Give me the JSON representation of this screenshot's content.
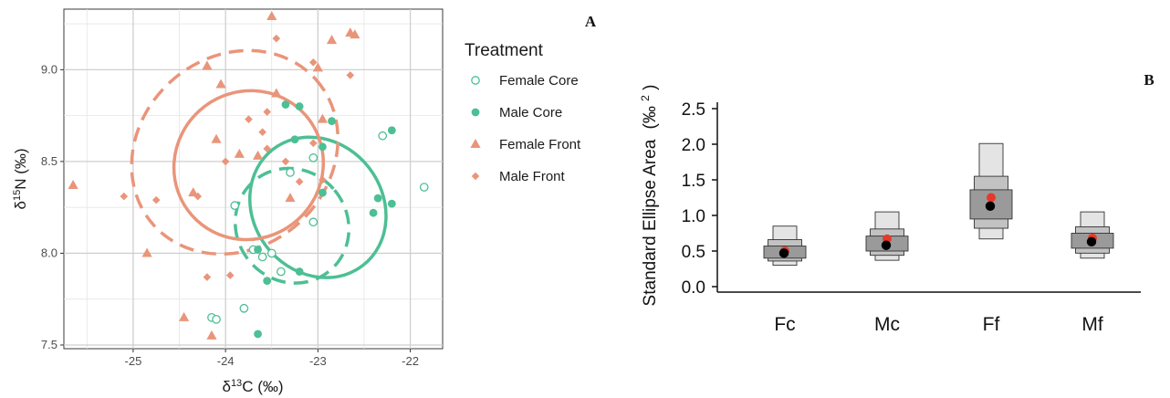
{
  "chart_data": [
    {
      "type": "scatter",
      "panel_label": "A",
      "xlabel": "δ13C (‰)",
      "ylabel": "δ15N (‰)",
      "xlim": [
        -25.75,
        -21.65
      ],
      "ylim": [
        7.48,
        9.33
      ],
      "xticks": [
        {
          "value": -25,
          "label": "-25"
        },
        {
          "value": -24,
          "label": "-24"
        },
        {
          "value": -23,
          "label": "-23"
        },
        {
          "value": -22,
          "label": "-22"
        }
      ],
      "yticks": [
        {
          "value": 7.5,
          "label": "7.5"
        },
        {
          "value": 8.0,
          "label": "8.0"
        },
        {
          "value": 8.5,
          "label": "8.5"
        },
        {
          "value": 9.0,
          "label": "9.0"
        }
      ],
      "grid": true,
      "legend": {
        "title": "Treatment",
        "position": "right",
        "entries": [
          {
            "name": "Female Core",
            "marker": "circle-open",
            "color": "#4dbf94"
          },
          {
            "name": "Male Core",
            "marker": "circle",
            "color": "#4dbf94"
          },
          {
            "name": "Female Front",
            "marker": "triangle",
            "color": "#e9957a"
          },
          {
            "name": "Male Front",
            "marker": "diamond",
            "color": "#e9957a"
          }
        ]
      },
      "series": [
        {
          "name": "Female Core",
          "marker": "circle-open",
          "color": "#4dbf94",
          "points": [
            [
              -23.9,
              8.26
            ],
            [
              -23.7,
              8.02
            ],
            [
              -23.6,
              7.98
            ],
            [
              -23.5,
              8.0
            ],
            [
              -23.3,
              8.44
            ],
            [
              -23.05,
              8.52
            ],
            [
              -23.05,
              8.17
            ],
            [
              -22.3,
              8.64
            ],
            [
              -21.85,
              8.36
            ],
            [
              -24.15,
              7.65
            ],
            [
              -24.1,
              7.64
            ],
            [
              -23.8,
              7.7
            ],
            [
              -23.4,
              7.9
            ]
          ]
        },
        {
          "name": "Male Core",
          "marker": "circle",
          "color": "#4dbf94",
          "points": [
            [
              -23.35,
              8.81
            ],
            [
              -23.2,
              8.8
            ],
            [
              -22.85,
              8.72
            ],
            [
              -22.2,
              8.67
            ],
            [
              -23.25,
              8.62
            ],
            [
              -22.95,
              8.58
            ],
            [
              -22.95,
              8.33
            ],
            [
              -22.35,
              8.3
            ],
            [
              -22.2,
              8.27
            ],
            [
              -22.4,
              8.22
            ],
            [
              -23.65,
              8.02
            ],
            [
              -23.2,
              7.9
            ],
            [
              -23.55,
              7.85
            ],
            [
              -23.65,
              7.56
            ]
          ]
        },
        {
          "name": "Female Front",
          "marker": "triangle",
          "color": "#e9957a",
          "points": [
            [
              -23.5,
              9.29
            ],
            [
              -22.6,
              9.19
            ],
            [
              -22.85,
              9.16
            ],
            [
              -22.65,
              9.2
            ],
            [
              -23.0,
              9.01
            ],
            [
              -24.2,
              9.02
            ],
            [
              -24.05,
              8.92
            ],
            [
              -23.45,
              8.87
            ],
            [
              -22.95,
              8.73
            ],
            [
              -24.1,
              8.62
            ],
            [
              -23.85,
              8.54
            ],
            [
              -23.65,
              8.53
            ],
            [
              -23.3,
              8.3
            ],
            [
              -25.65,
              8.37
            ],
            [
              -24.35,
              8.33
            ],
            [
              -24.85,
              8.0
            ],
            [
              -24.45,
              7.65
            ],
            [
              -24.15,
              7.55
            ]
          ]
        },
        {
          "name": "Male Front",
          "marker": "diamond",
          "color": "#e9957a",
          "points": [
            [
              -23.45,
              9.17
            ],
            [
              -23.05,
              9.04
            ],
            [
              -22.65,
              8.97
            ],
            [
              -23.55,
              8.77
            ],
            [
              -23.05,
              8.6
            ],
            [
              -23.6,
              8.66
            ],
            [
              -23.75,
              8.73
            ],
            [
              -23.55,
              8.57
            ],
            [
              -24.0,
              8.5
            ],
            [
              -23.35,
              8.5
            ],
            [
              -22.95,
              8.4
            ],
            [
              -25.1,
              8.31
            ],
            [
              -24.75,
              8.29
            ],
            [
              -24.3,
              8.31
            ],
            [
              -23.2,
              8.39
            ],
            [
              -24.2,
              7.87
            ],
            [
              -23.95,
              7.88
            ]
          ]
        }
      ],
      "ellipses": [
        {
          "series": "Female Core",
          "style": "dashed",
          "color": "#4dbf94",
          "center": [
            -23.28,
            8.15
          ],
          "rx_data": 0.6,
          "ry_data": 0.32,
          "angle_deg": -40
        },
        {
          "series": "Male Core",
          "style": "solid",
          "color": "#4dbf94",
          "center": [
            -23.0,
            8.25
          ],
          "rx_data": 0.7,
          "ry_data": 0.4,
          "angle_deg": -38
        },
        {
          "series": "Female Front",
          "style": "dashed",
          "color": "#e9957a",
          "center": [
            -23.9,
            8.55
          ],
          "rx_data": 1.18,
          "ry_data": 0.52,
          "angle_deg": -42
        },
        {
          "series": "Male Front",
          "style": "solid",
          "color": "#e9957a",
          "center": [
            -23.75,
            8.48
          ],
          "rx_data": 0.82,
          "ry_data": 0.4,
          "angle_deg": -42
        }
      ]
    },
    {
      "type": "box",
      "panel_label": "B",
      "xlabel": "",
      "ylabel": "Standard Ellipse Area",
      "ylabel_unit": "(‰",
      "ylabel_unit_exp": "2",
      "ylabel_unit_close": ")",
      "ylim": [
        0,
        2.5
      ],
      "yticks": [
        {
          "value": 0.0,
          "label": "0.0"
        },
        {
          "value": 0.5,
          "label": "0.5"
        },
        {
          "value": 1.0,
          "label": "1.0"
        },
        {
          "value": 1.5,
          "label": "1.5"
        },
        {
          "value": 2.0,
          "label": "2.0"
        },
        {
          "value": 2.5,
          "label": "2.5"
        }
      ],
      "categories": [
        "Fc",
        "Mc",
        "Ff",
        "Mf"
      ],
      "intervals": [
        {
          "category": "Fc",
          "ci95": [
            0.3,
            0.85
          ],
          "ci75": [
            0.36,
            0.66
          ],
          "ci50": [
            0.4,
            0.57
          ],
          "mode": 0.47,
          "ml_estimate": 0.5
        },
        {
          "category": "Mc",
          "ci95": [
            0.37,
            1.05
          ],
          "ci75": [
            0.44,
            0.81
          ],
          "ci50": [
            0.5,
            0.71
          ],
          "mode": 0.58,
          "ml_estimate": 0.67
        },
        {
          "category": "Ff",
          "ci95": [
            0.67,
            2.01
          ],
          "ci75": [
            0.82,
            1.55
          ],
          "ci50": [
            0.95,
            1.36
          ],
          "mode": 1.13,
          "ml_estimate": 1.25
        },
        {
          "category": "Mf",
          "ci95": [
            0.4,
            1.05
          ],
          "ci75": [
            0.47,
            0.84
          ],
          "ci50": [
            0.54,
            0.75
          ],
          "mode": 0.63,
          "ml_estimate": 0.68
        }
      ],
      "colors": {
        "ci95": "#e4e4e4",
        "ci75": "#c2c2c2",
        "ci50": "#9a9a9a",
        "mode": "#000000",
        "ml_estimate": "#e53a2a"
      }
    }
  ]
}
